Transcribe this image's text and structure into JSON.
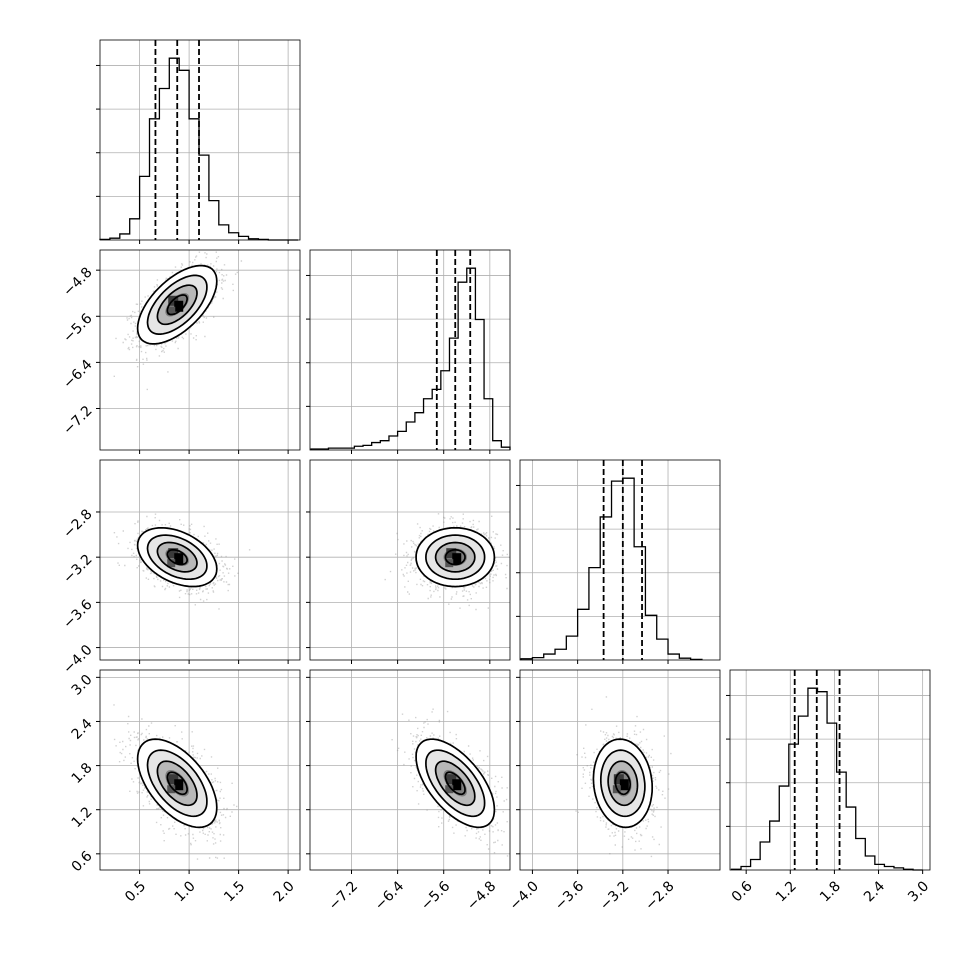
{
  "chart_data": {
    "type": "corner",
    "params": [
      {
        "range": [
          0.1,
          2.12
        ],
        "ticks": [
          "0.5",
          "1.0",
          "1.5",
          "2.0"
        ],
        "tick_values": [
          0.5,
          1.0,
          1.5,
          2.0
        ]
      },
      {
        "range": [
          -7.92,
          -4.45
        ],
        "ticks": [
          "−7.2",
          "−6.4",
          "−5.6",
          "−4.8"
        ],
        "tick_values": [
          -7.2,
          -6.4,
          -5.6,
          -4.8
        ]
      },
      {
        "range": [
          -4.11,
          -2.34
        ],
        "ticks": [
          "−4.0",
          "−3.6",
          "−3.2",
          "−2.8"
        ],
        "tick_values": [
          -4.0,
          -3.6,
          -3.2,
          -2.8
        ]
      },
      {
        "range": [
          0.38,
          3.1
        ],
        "ticks": [
          "0.6",
          "1.2",
          "1.8",
          "2.4",
          "3.0"
        ],
        "tick_values": [
          0.6,
          1.2,
          1.8,
          2.4,
          3.0
        ]
      }
    ],
    "marginals": [
      {
        "quantiles": [
          0.66,
          0.88,
          1.1
        ],
        "bin_edges": [
          0.1,
          0.2,
          0.3,
          0.4,
          0.5,
          0.6,
          0.7,
          0.8,
          0.9,
          1.0,
          1.1,
          1.2,
          1.3,
          1.4,
          1.5,
          1.6,
          1.7,
          1.8,
          1.9,
          2.0,
          2.1
        ],
        "counts": [
          1,
          3,
          10,
          35,
          105,
          200,
          250,
          300,
          280,
          200,
          140,
          65,
          25,
          12,
          6,
          2,
          1,
          0,
          0,
          0
        ]
      },
      {
        "quantiles": [
          -5.72,
          -5.4,
          -5.14
        ],
        "bin_edges": [
          -7.9,
          -7.75,
          -7.6,
          -7.45,
          -7.3,
          -7.15,
          -7.0,
          -6.85,
          -6.7,
          -6.55,
          -6.4,
          -6.25,
          -6.1,
          -5.95,
          -5.8,
          -5.65,
          -5.5,
          -5.35,
          -5.2,
          -5.05,
          -4.9,
          -4.75,
          -4.6,
          -4.45
        ],
        "counts": [
          1,
          1,
          2,
          2,
          2,
          4,
          5,
          8,
          10,
          15,
          20,
          30,
          40,
          55,
          65,
          85,
          120,
          180,
          195,
          140,
          55,
          10,
          3
        ]
      },
      {
        "quantiles": [
          -3.37,
          -3.2,
          -3.03
        ],
        "bin_edges": [
          -4.1,
          -4.0,
          -3.9,
          -3.8,
          -3.7,
          -3.6,
          -3.5,
          -3.4,
          -3.3,
          -3.2,
          -3.1,
          -3.0,
          -2.9,
          -2.8,
          -2.7,
          -2.6,
          -2.5
        ],
        "counts": [
          2,
          4,
          10,
          18,
          40,
          85,
          155,
          240,
          300,
          305,
          190,
          75,
          35,
          10,
          3,
          1
        ]
      },
      {
        "quantiles": [
          1.26,
          1.56,
          1.87
        ],
        "bin_edges": [
          0.4,
          0.53,
          0.66,
          0.79,
          0.92,
          1.05,
          1.18,
          1.31,
          1.44,
          1.57,
          1.7,
          1.83,
          1.96,
          2.09,
          2.22,
          2.35,
          2.48,
          2.61,
          2.74,
          2.87,
          3.0
        ],
        "counts": [
          1,
          5,
          15,
          40,
          70,
          120,
          180,
          220,
          260,
          255,
          210,
          140,
          90,
          45,
          20,
          8,
          5,
          3,
          1,
          0
        ]
      }
    ],
    "pairs": [
      {
        "x": 0,
        "y": 1,
        "mean": [
          0.88,
          -5.4
        ],
        "sd": [
          0.2,
          0.34
        ],
        "corr": 0.6
      },
      {
        "x": 0,
        "y": 2,
        "mean": [
          0.88,
          -3.2
        ],
        "sd": [
          0.2,
          0.13
        ],
        "corr": -0.4
      },
      {
        "x": 1,
        "y": 2,
        "mean": [
          -5.4,
          -3.2
        ],
        "sd": [
          0.34,
          0.13
        ],
        "corr": 0.0
      },
      {
        "x": 0,
        "y": 3,
        "mean": [
          0.88,
          1.56
        ],
        "sd": [
          0.2,
          0.3
        ],
        "corr": -0.55
      },
      {
        "x": 1,
        "y": 3,
        "mean": [
          -5.4,
          1.56
        ],
        "sd": [
          0.34,
          0.3
        ],
        "corr": -0.6
      },
      {
        "x": 2,
        "y": 3,
        "mean": [
          -3.2,
          1.56
        ],
        "sd": [
          0.13,
          0.3
        ],
        "corr": -0.1
      }
    ],
    "contour_levels_sigma": [
      0.5,
      1.0,
      1.5,
      2.0
    ],
    "grid": true,
    "title": "",
    "colors": {
      "hist": "#000000",
      "points": "#999999",
      "fill_dark": "#000000",
      "grid": "#b0b0b0"
    }
  }
}
